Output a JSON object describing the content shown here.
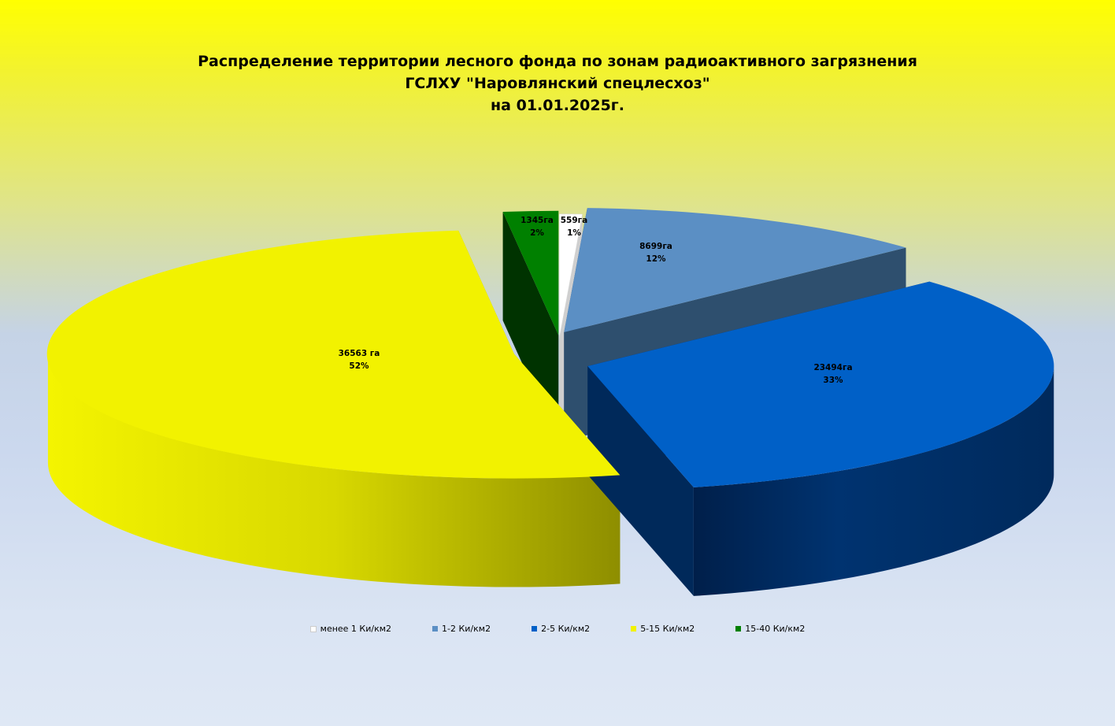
{
  "chart_data": {
    "type": "pie",
    "title_lines": [
      "Распределение территории лесного фонда по зонам радиоактивного загрязнения",
      "ГСЛХУ \"Наровлянский спецлесхоз\"",
      "на 01.01.2025г."
    ],
    "slices": [
      {
        "name": "менее  1 Ки/км2",
        "value": 559,
        "value_label": "559га",
        "percent_label": "1%",
        "color": "#ffffff",
        "side_color": "#cfcfcf"
      },
      {
        "name": "1-2 Ки/км2",
        "value": 8699,
        "value_label": "8699га",
        "percent_label": "12%",
        "color": "#5b8fc4",
        "side_color": "#2e4f6e"
      },
      {
        "name": "2-5 Ки/км2",
        "value": 23494,
        "value_label": "23494га",
        "percent_label": "33%",
        "color": "#0060c7",
        "side_color": "#00295a"
      },
      {
        "name": "5-15 Ки/км2",
        "value": 36563,
        "value_label": "36563 га",
        "percent_label": "52%",
        "color": "#f2f200",
        "side_color": "#a8a800"
      },
      {
        "name": "15-40 Ки/км2",
        "value": 1345,
        "value_label": "1345га",
        "percent_label": "2%",
        "color": "#008000",
        "side_color": "#003300"
      }
    ],
    "legend_position": "bottom",
    "style": "3d-exploded"
  }
}
